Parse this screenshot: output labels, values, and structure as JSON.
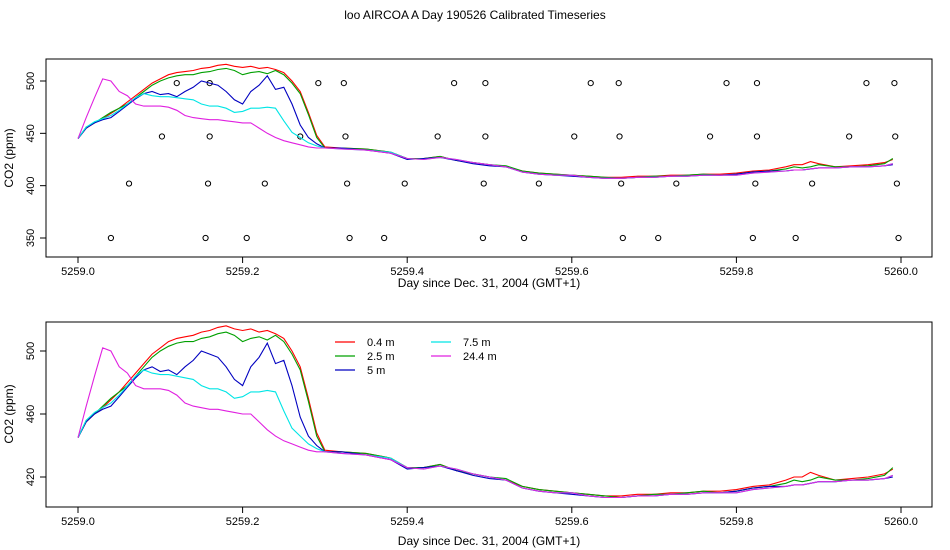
{
  "page": {
    "title": "loo AIRCOA A  Day 190526  Calibrated Timeseries"
  },
  "colors": {
    "0.4 m": "#ff0000",
    "2.5 m": "#00a000",
    "5 m": "#0000c0",
    "7.5 m": "#00e5e5",
    "24.4 m": "#e020e0"
  },
  "chart_data": [
    {
      "type": "line",
      "xlabel": "Day since Dec. 31, 2004 (GMT+1)",
      "ylabel": "CO2 (ppm)",
      "xlim": [
        5258.97,
        5260.03
      ],
      "ylim": [
        345,
        520
      ],
      "xticks": [
        "5259.0",
        "5259.2",
        "5259.4",
        "5259.6",
        "5259.8",
        "5260.0"
      ],
      "yticks": [
        "350",
        "400",
        "450",
        "500"
      ],
      "grid": false,
      "legend": false,
      "markers": {
        "x": [
          5259.04,
          5259.062,
          5259.102,
          5259.12,
          5259.155,
          5259.158,
          5259.16,
          5259.16,
          5259.205,
          5259.227,
          5259.27,
          5259.292,
          5259.323,
          5259.325,
          5259.327,
          5259.33,
          5259.372,
          5259.397,
          5259.437,
          5259.457,
          5259.492,
          5259.493,
          5259.495,
          5259.495,
          5259.542,
          5259.56,
          5259.603,
          5259.623,
          5259.657,
          5259.658,
          5259.66,
          5259.662,
          5259.705,
          5259.727,
          5259.768,
          5259.788,
          5259.82,
          5259.823,
          5259.825,
          5259.825,
          5259.872,
          5259.892,
          5259.937,
          5259.958,
          5259.992,
          5259.993,
          5259.995,
          5259.997
        ],
        "y": [
          350,
          402,
          447,
          498,
          350,
          402,
          447,
          498,
          350,
          402,
          447,
          498,
          498,
          447,
          402,
          350,
          350,
          402,
          447,
          498,
          350,
          402,
          447,
          498,
          350,
          402,
          447,
          498,
          498,
          447,
          402,
          350,
          350,
          402,
          447,
          498,
          350,
          402,
          447,
          498,
          350,
          402,
          447,
          498,
          498,
          447,
          402,
          350
        ]
      },
      "series": [
        {
          "name": "0.4 m",
          "x": [
            5259.0,
            5259.01,
            5259.02,
            5259.03,
            5259.04,
            5259.05,
            5259.06,
            5259.07,
            5259.08,
            5259.09,
            5259.1,
            5259.11,
            5259.12,
            5259.13,
            5259.14,
            5259.15,
            5259.16,
            5259.17,
            5259.18,
            5259.19,
            5259.2,
            5259.21,
            5259.22,
            5259.23,
            5259.24,
            5259.25,
            5259.26,
            5259.27,
            5259.28,
            5259.29,
            5259.3,
            5259.32,
            5259.35,
            5259.38,
            5259.4,
            5259.42,
            5259.44,
            5259.46,
            5259.48,
            5259.5,
            5259.52,
            5259.54,
            5259.56,
            5259.58,
            5259.6,
            5259.62,
            5259.64,
            5259.66,
            5259.68,
            5259.7,
            5259.72,
            5259.74,
            5259.76,
            5259.78,
            5259.8,
            5259.82,
            5259.84,
            5259.86,
            5259.87,
            5259.88,
            5259.89,
            5259.9,
            5259.92,
            5259.94,
            5259.96,
            5259.98,
            5259.99
          ],
          "y": [
            445,
            455,
            460,
            464,
            469,
            474,
            480,
            486,
            492,
            498,
            502,
            506,
            508,
            509,
            510,
            512,
            513,
            515,
            516,
            514,
            513,
            514,
            512,
            513,
            511,
            508,
            500,
            490,
            470,
            448,
            437,
            436,
            435,
            432,
            426,
            426,
            428,
            424,
            422,
            420,
            418,
            414,
            412,
            411,
            410,
            409,
            408,
            408,
            409,
            409,
            410,
            410,
            411,
            411,
            412,
            414,
            415,
            418,
            420,
            420,
            423,
            421,
            418,
            419,
            420,
            422,
            425
          ]
        },
        {
          "name": "2.5 m",
          "x": [
            5259.0,
            5259.01,
            5259.02,
            5259.03,
            5259.04,
            5259.05,
            5259.06,
            5259.07,
            5259.08,
            5259.09,
            5259.1,
            5259.11,
            5259.12,
            5259.13,
            5259.14,
            5259.15,
            5259.16,
            5259.17,
            5259.18,
            5259.19,
            5259.2,
            5259.21,
            5259.22,
            5259.23,
            5259.24,
            5259.25,
            5259.26,
            5259.27,
            5259.28,
            5259.29,
            5259.3,
            5259.32,
            5259.35,
            5259.38,
            5259.4,
            5259.42,
            5259.44,
            5259.46,
            5259.48,
            5259.5,
            5259.52,
            5259.54,
            5259.56,
            5259.58,
            5259.6,
            5259.62,
            5259.64,
            5259.66,
            5259.68,
            5259.7,
            5259.72,
            5259.74,
            5259.76,
            5259.78,
            5259.8,
            5259.82,
            5259.84,
            5259.86,
            5259.87,
            5259.88,
            5259.89,
            5259.9,
            5259.92,
            5259.94,
            5259.96,
            5259.98,
            5259.99
          ],
          "y": [
            445,
            456,
            460,
            465,
            470,
            474,
            478,
            484,
            490,
            496,
            500,
            503,
            505,
            506,
            506,
            508,
            509,
            511,
            512,
            510,
            506,
            508,
            509,
            507,
            510,
            506,
            498,
            488,
            468,
            446,
            436,
            436,
            435,
            432,
            426,
            426,
            428,
            424,
            422,
            420,
            419,
            414,
            412,
            411,
            410,
            409,
            408,
            407,
            408,
            409,
            409,
            410,
            411,
            410,
            411,
            413,
            414,
            416,
            418,
            417,
            418,
            420,
            418,
            418,
            419,
            421,
            426
          ]
        },
        {
          "name": "5 m",
          "x": [
            5259.0,
            5259.01,
            5259.02,
            5259.03,
            5259.04,
            5259.05,
            5259.06,
            5259.07,
            5259.08,
            5259.09,
            5259.1,
            5259.11,
            5259.12,
            5259.13,
            5259.14,
            5259.15,
            5259.16,
            5259.17,
            5259.18,
            5259.19,
            5259.2,
            5259.21,
            5259.22,
            5259.23,
            5259.24,
            5259.25,
            5259.26,
            5259.27,
            5259.28,
            5259.29,
            5259.3,
            5259.32,
            5259.35,
            5259.38,
            5259.4,
            5259.42,
            5259.44,
            5259.46,
            5259.48,
            5259.5,
            5259.52,
            5259.54,
            5259.56,
            5259.58,
            5259.6,
            5259.62,
            5259.64,
            5259.66,
            5259.68,
            5259.7,
            5259.72,
            5259.74,
            5259.76,
            5259.78,
            5259.8,
            5259.82,
            5259.84,
            5259.86,
            5259.87,
            5259.88,
            5259.89,
            5259.9,
            5259.92,
            5259.94,
            5259.96,
            5259.98,
            5259.99
          ],
          "y": [
            445,
            455,
            460,
            463,
            465,
            471,
            477,
            483,
            488,
            490,
            487,
            488,
            485,
            490,
            494,
            500,
            498,
            496,
            490,
            482,
            478,
            490,
            496,
            505,
            492,
            494,
            478,
            458,
            446,
            440,
            436,
            436,
            434,
            431,
            425,
            426,
            427,
            424,
            421,
            419,
            418,
            413,
            411,
            410,
            409,
            408,
            407,
            407,
            408,
            408,
            409,
            409,
            410,
            410,
            411,
            413,
            414,
            414,
            415,
            415,
            416,
            417,
            417,
            418,
            418,
            419,
            420
          ]
        },
        {
          "name": "7.5 m",
          "x": [
            5259.0,
            5259.01,
            5259.02,
            5259.03,
            5259.04,
            5259.05,
            5259.06,
            5259.07,
            5259.08,
            5259.09,
            5259.1,
            5259.11,
            5259.12,
            5259.13,
            5259.14,
            5259.15,
            5259.16,
            5259.17,
            5259.18,
            5259.19,
            5259.2,
            5259.21,
            5259.22,
            5259.23,
            5259.24,
            5259.25,
            5259.26,
            5259.27,
            5259.28,
            5259.29,
            5259.3,
            5259.32,
            5259.35,
            5259.38,
            5259.4,
            5259.42,
            5259.44,
            5259.46,
            5259.48,
            5259.5,
            5259.52,
            5259.54,
            5259.56,
            5259.58,
            5259.6,
            5259.62,
            5259.64,
            5259.66,
            5259.68,
            5259.7,
            5259.72,
            5259.74,
            5259.76,
            5259.78,
            5259.8,
            5259.82,
            5259.84,
            5259.86,
            5259.87,
            5259.88,
            5259.89,
            5259.9,
            5259.92,
            5259.94,
            5259.96,
            5259.98,
            5259.99
          ],
          "y": [
            445,
            456,
            461,
            464,
            467,
            472,
            478,
            484,
            488,
            486,
            485,
            485,
            484,
            483,
            482,
            478,
            476,
            476,
            474,
            470,
            471,
            474,
            474,
            475,
            474,
            462,
            451,
            446,
            441,
            438,
            436,
            435,
            434,
            432,
            426,
            425,
            427,
            425,
            422,
            420,
            418,
            413,
            411,
            410,
            410,
            408,
            407,
            407,
            408,
            408,
            409,
            409,
            410,
            410,
            410,
            412,
            413,
            414,
            415,
            415,
            416,
            417,
            417,
            418,
            418,
            419,
            421
          ]
        },
        {
          "name": "24.4 m",
          "x": [
            5259.0,
            5259.01,
            5259.02,
            5259.03,
            5259.04,
            5259.05,
            5259.06,
            5259.07,
            5259.08,
            5259.09,
            5259.1,
            5259.11,
            5259.12,
            5259.13,
            5259.14,
            5259.15,
            5259.16,
            5259.17,
            5259.18,
            5259.19,
            5259.2,
            5259.21,
            5259.22,
            5259.23,
            5259.24,
            5259.25,
            5259.26,
            5259.27,
            5259.28,
            5259.29,
            5259.3,
            5259.32,
            5259.35,
            5259.38,
            5259.4,
            5259.42,
            5259.44,
            5259.46,
            5259.48,
            5259.5,
            5259.52,
            5259.54,
            5259.56,
            5259.58,
            5259.6,
            5259.62,
            5259.64,
            5259.66,
            5259.68,
            5259.7,
            5259.72,
            5259.74,
            5259.76,
            5259.78,
            5259.8,
            5259.82,
            5259.84,
            5259.86,
            5259.87,
            5259.88,
            5259.89,
            5259.9,
            5259.92,
            5259.94,
            5259.96,
            5259.98,
            5259.99
          ],
          "y": [
            445,
            465,
            484,
            502,
            500,
            490,
            486,
            478,
            476,
            476,
            476,
            475,
            472,
            467,
            465,
            464,
            463,
            463,
            462,
            461,
            460,
            460,
            455,
            450,
            446,
            443,
            441,
            439,
            437,
            436,
            436,
            435,
            434,
            431,
            426,
            425,
            427,
            425,
            422,
            420,
            418,
            413,
            411,
            410,
            410,
            408,
            407,
            407,
            408,
            408,
            409,
            409,
            410,
            410,
            410,
            412,
            413,
            414,
            415,
            415,
            416,
            417,
            417,
            418,
            418,
            419,
            421
          ]
        }
      ]
    },
    {
      "type": "line",
      "xlabel": "Day since Dec. 31, 2004 (GMT+1)",
      "ylabel": "CO2 (ppm)",
      "xlim": [
        5258.97,
        5260.03
      ],
      "ylim": [
        405,
        520
      ],
      "xticks": [
        "5259.0",
        "5259.2",
        "5259.4",
        "5259.6",
        "5259.8",
        "5260.0"
      ],
      "yticks": [
        "420",
        "460",
        "500"
      ],
      "grid": false,
      "legend": true,
      "legend_placement": "top-left",
      "legend_entries": [
        "0.4 m",
        "2.5 m",
        "5 m",
        "7.5 m",
        "24.4 m"
      ],
      "series_ref": "same series as top panel"
    }
  ]
}
